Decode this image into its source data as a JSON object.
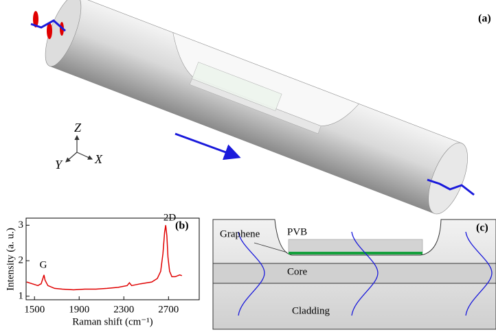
{
  "panel_a": {
    "label": "(a)",
    "axis_z": "Z",
    "axis_y": "Y",
    "axis_x": "X"
  },
  "chart_data": {
    "type": "line",
    "panel_label": "(b)",
    "x_label": "Raman shift (cm⁻¹)",
    "y_label": "Intensity (a. u.)",
    "annotations": [
      "G",
      "2D"
    ],
    "x": [
      1430,
      1480,
      1530,
      1560,
      1575,
      1585,
      1595,
      1620,
      1680,
      1750,
      1850,
      1950,
      2050,
      2150,
      2250,
      2330,
      2350,
      2370,
      2450,
      2550,
      2600,
      2630,
      2650,
      2665,
      2675,
      2685,
      2695,
      2710,
      2730,
      2760,
      2800,
      2820
    ],
    "values": [
      1.4,
      1.35,
      1.3,
      1.35,
      1.5,
      1.6,
      1.45,
      1.3,
      1.22,
      1.2,
      1.18,
      1.2,
      1.2,
      1.22,
      1.25,
      1.3,
      1.38,
      1.3,
      1.35,
      1.4,
      1.5,
      1.7,
      2.2,
      2.8,
      3.0,
      2.7,
      2.1,
      1.7,
      1.55,
      1.55,
      1.6,
      1.58
    ],
    "color": "#e00000",
    "xlim": [
      1425,
      2975
    ],
    "ylim": [
      0.9,
      3.2
    ],
    "xticks": [
      1500,
      1900,
      2300,
      2700
    ],
    "yticks": [
      1,
      2,
      3
    ]
  },
  "panel_c": {
    "label": "(c)",
    "graphene": "Graphene",
    "pvb": "PVB",
    "core": "Core",
    "cladding": "Cladding"
  }
}
